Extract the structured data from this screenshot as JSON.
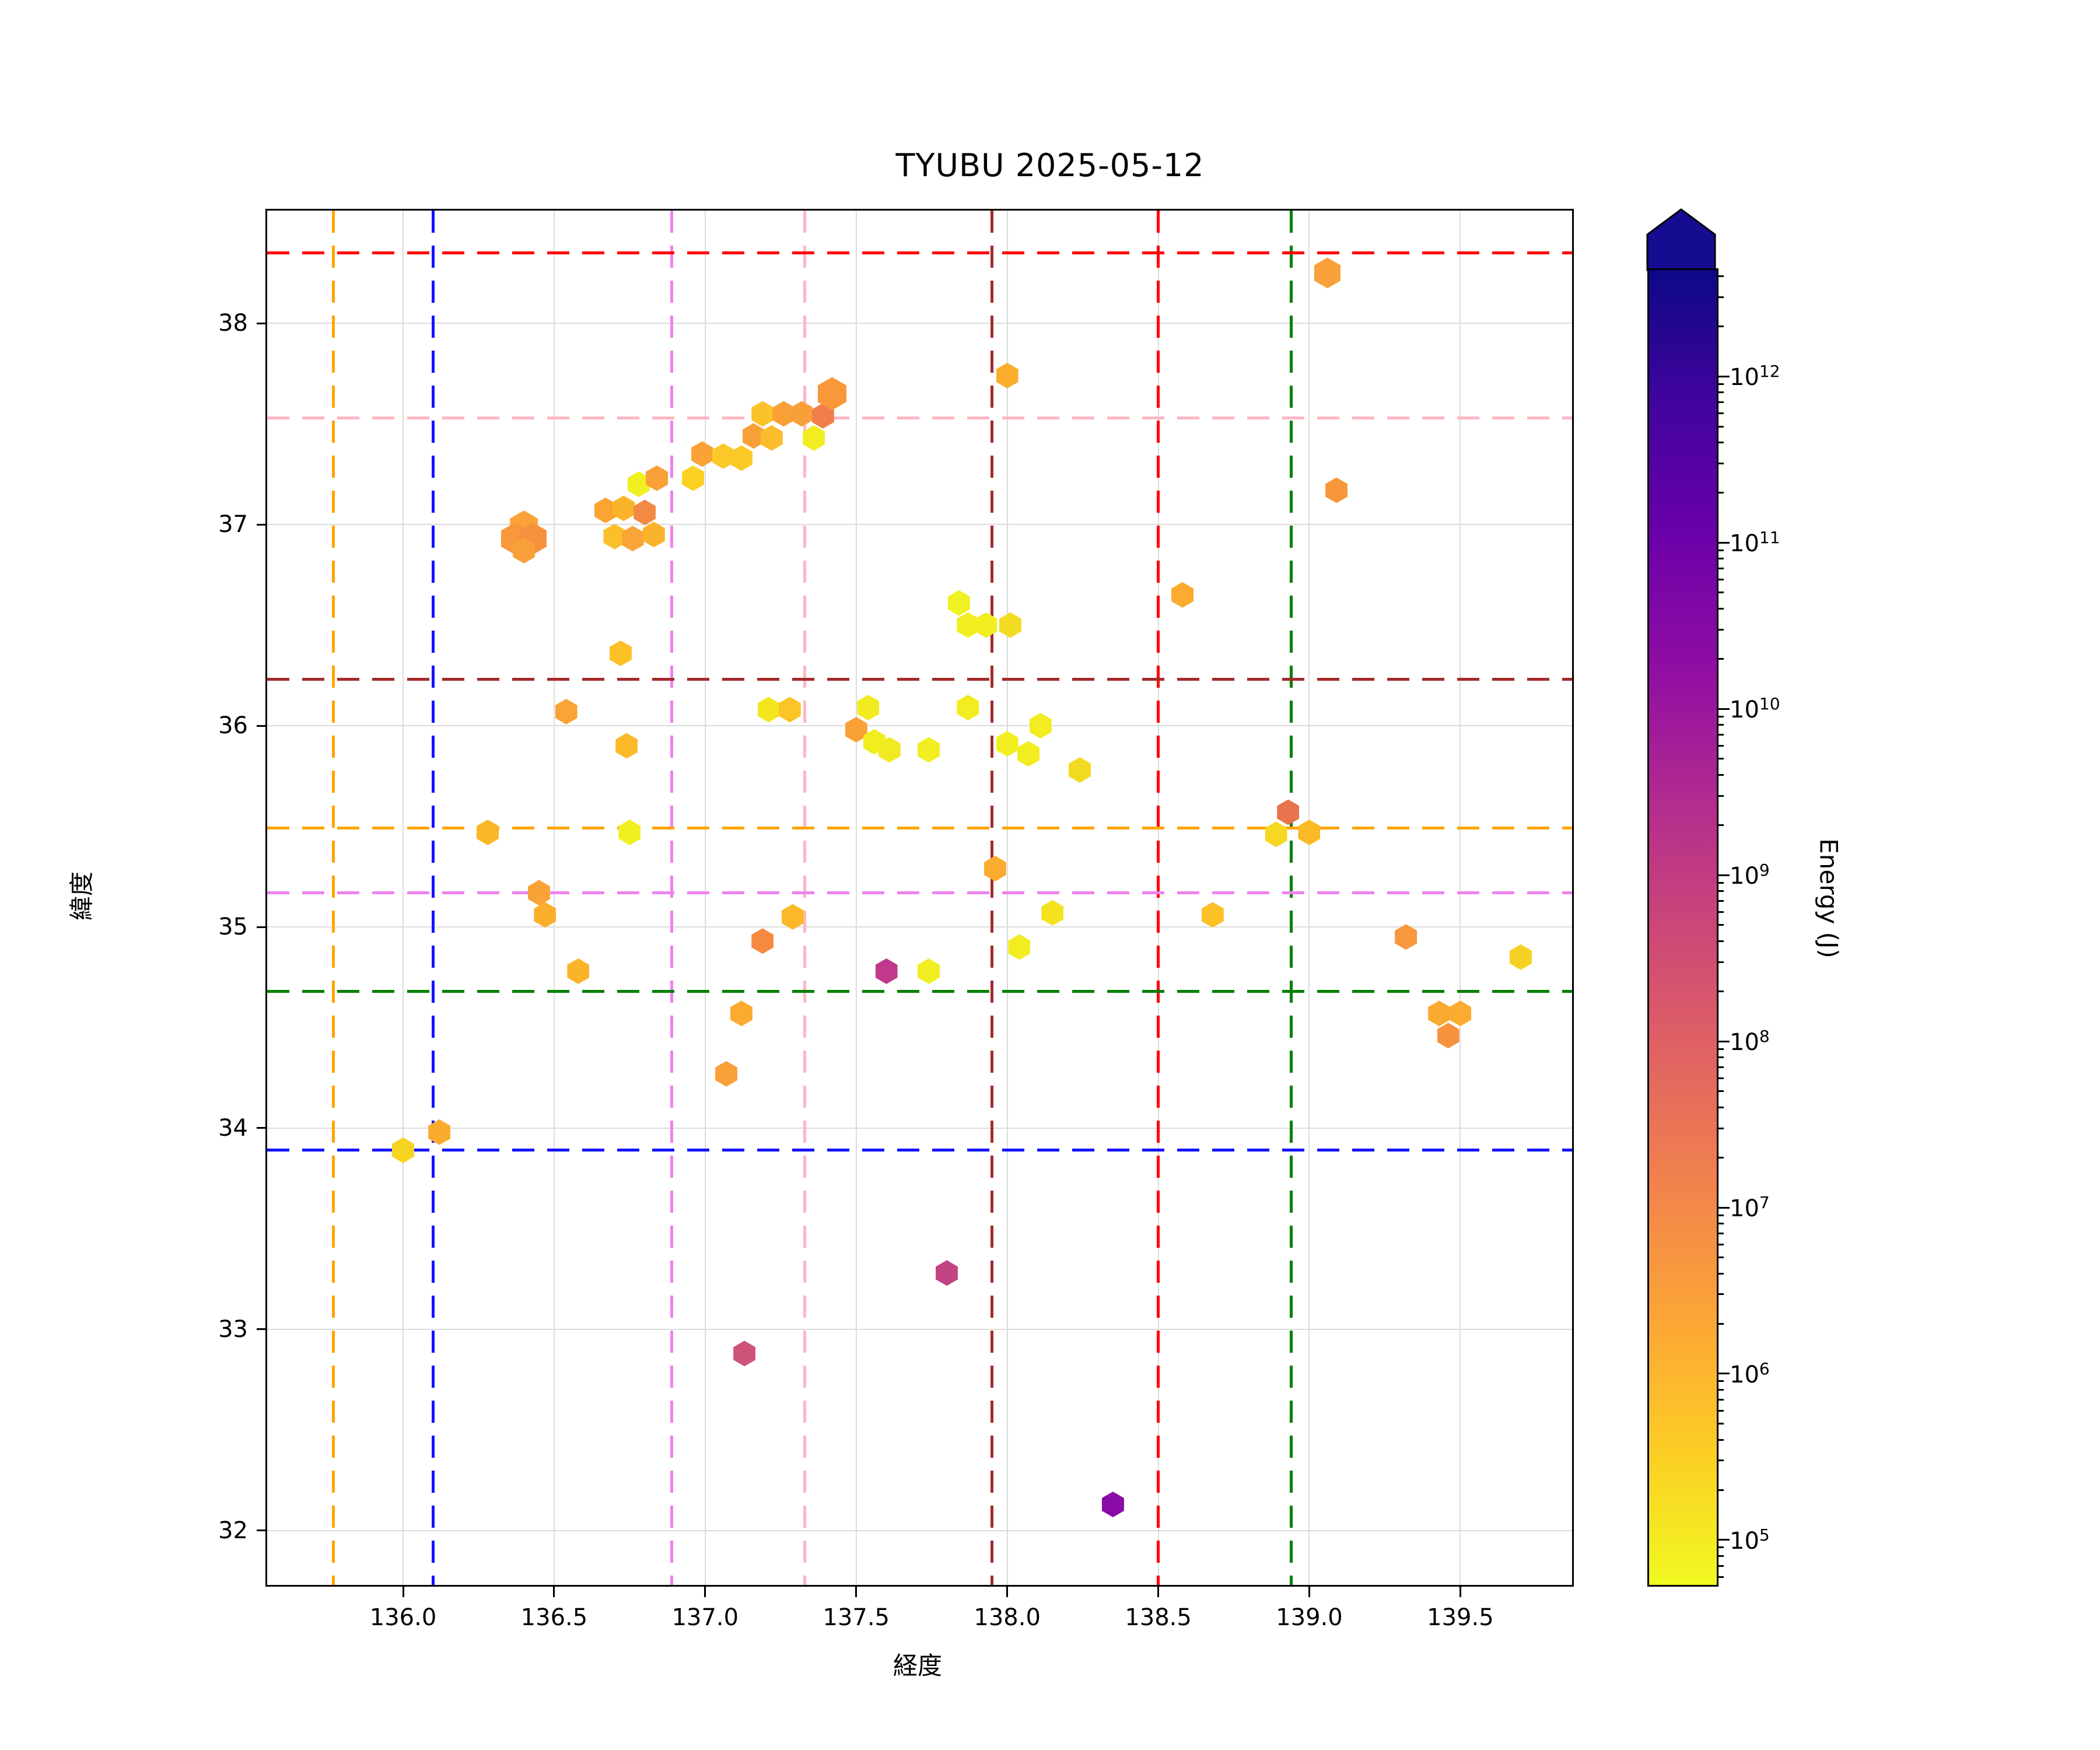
{
  "title": "TYUBU 2025-05-12",
  "axes": {
    "xlabel": "経度",
    "ylabel": "緯度",
    "xlim": [
      135.55,
      139.87
    ],
    "ylim": [
      31.73,
      38.56
    ],
    "xticks": [
      136.0,
      136.5,
      137.0,
      137.5,
      138.0,
      138.5,
      139.0,
      139.5
    ],
    "yticks": [
      32,
      33,
      34,
      35,
      36,
      37,
      38
    ],
    "grid_color": "#dcdcdc"
  },
  "reference_lines": {
    "vertical": [
      {
        "lon": 135.77,
        "color": "#ffa500"
      },
      {
        "lon": 136.1,
        "color": "#1414ff"
      },
      {
        "lon": 136.89,
        "color": "#ee82ee"
      },
      {
        "lon": 137.33,
        "color": "#ffb6c1"
      },
      {
        "lon": 137.95,
        "color": "#a52a2a"
      },
      {
        "lon": 138.5,
        "color": "#ff0000"
      },
      {
        "lon": 138.94,
        "color": "#008000"
      }
    ],
    "horizontal": [
      {
        "lat": 38.35,
        "color": "#ff0000"
      },
      {
        "lat": 37.53,
        "color": "#ffb6c1"
      },
      {
        "lat": 36.23,
        "color": "#a52a2a"
      },
      {
        "lat": 35.49,
        "color": "#ffa500"
      },
      {
        "lat": 35.17,
        "color": "#ee82ee"
      },
      {
        "lat": 34.68,
        "color": "#008000"
      },
      {
        "lat": 33.89,
        "color": "#1414ff"
      }
    ]
  },
  "chart_data": {
    "type": "scatter",
    "marker": "hexagon",
    "title": "TYUBU 2025-05-12",
    "xlabel": "経度",
    "ylabel": "緯度",
    "xlim": [
      135.55,
      139.87
    ],
    "ylim": [
      31.73,
      38.56
    ],
    "color_encodes": "Energy (J), log scale, plasma colormap reversed (yellow=low, dark blue=high)",
    "points": [
      {
        "lon": 136.4,
        "lat": 36.99,
        "color": "#fba238",
        "energy_j": 2000000.0,
        "size": 1.25
      },
      {
        "lon": 136.37,
        "lat": 36.93,
        "color": "#f9973c",
        "energy_j": 4000000.0,
        "size": 1.25
      },
      {
        "lon": 136.43,
        "lat": 36.93,
        "color": "#f8913e",
        "energy_j": 5000000.0,
        "size": 1.25
      },
      {
        "lon": 136.4,
        "lat": 36.87,
        "color": "#f9a138",
        "energy_j": 2500000.0,
        "size": 1
      },
      {
        "lon": 136.67,
        "lat": 37.07,
        "color": "#f9a433",
        "energy_j": 2000000.0,
        "size": 1
      },
      {
        "lon": 136.73,
        "lat": 37.08,
        "color": "#fbb42a",
        "energy_j": 1000000.0,
        "size": 1
      },
      {
        "lon": 136.78,
        "lat": 37.2,
        "color": "#f0ef21",
        "energy_j": 100000.0,
        "size": 1
      },
      {
        "lon": 136.84,
        "lat": 37.23,
        "color": "#f9a038",
        "energy_j": 2500000.0,
        "size": 1
      },
      {
        "lon": 136.8,
        "lat": 37.06,
        "color": "#f28a44",
        "energy_j": 8000000.0,
        "size": 1
      },
      {
        "lon": 136.7,
        "lat": 36.94,
        "color": "#fbbf2c",
        "energy_j": 700000.0,
        "size": 1
      },
      {
        "lon": 136.76,
        "lat": 36.93,
        "color": "#f9a53a",
        "energy_j": 2000000.0,
        "size": 1
      },
      {
        "lon": 136.83,
        "lat": 36.95,
        "color": "#fbb32b",
        "energy_j": 1000000.0,
        "size": 1
      },
      {
        "lon": 136.96,
        "lat": 37.23,
        "color": "#fbd224",
        "energy_j": 300000.0,
        "size": 1
      },
      {
        "lon": 136.99,
        "lat": 37.35,
        "color": "#f9a337",
        "energy_j": 2000000.0,
        "size": 1
      },
      {
        "lon": 137.06,
        "lat": 37.34,
        "color": "#fbc928",
        "energy_j": 500000.0,
        "size": 1
      },
      {
        "lon": 137.12,
        "lat": 37.33,
        "color": "#fbc927",
        "energy_j": 500000.0,
        "size": 1
      },
      {
        "lon": 137.16,
        "lat": 37.44,
        "color": "#f9a139",
        "energy_j": 2500000.0,
        "size": 1
      },
      {
        "lon": 137.22,
        "lat": 37.43,
        "color": "#fbbd2b",
        "energy_j": 800000.0,
        "size": 1
      },
      {
        "lon": 137.19,
        "lat": 37.55,
        "color": "#fbc22a",
        "energy_j": 600000.0,
        "size": 1
      },
      {
        "lon": 137.26,
        "lat": 37.55,
        "color": "#f9a038",
        "energy_j": 2500000.0,
        "size": 1
      },
      {
        "lon": 137.32,
        "lat": 37.55,
        "color": "#f99f39",
        "energy_j": 2500000.0,
        "size": 1
      },
      {
        "lon": 137.39,
        "lat": 37.54,
        "color": "#ef7e4a",
        "energy_j": 15000000.0,
        "size": 1
      },
      {
        "lon": 137.42,
        "lat": 37.65,
        "color": "#f8983b",
        "energy_j": 4000000.0,
        "size": 1.3
      },
      {
        "lon": 137.36,
        "lat": 37.43,
        "color": "#f2ed20",
        "energy_j": 120000.0,
        "size": 1
      },
      {
        "lon": 136.72,
        "lat": 36.36,
        "color": "#fbc127",
        "energy_j": 600000.0,
        "size": 1
      },
      {
        "lon": 136.54,
        "lat": 36.07,
        "color": "#f9a434",
        "energy_j": 2000000.0,
        "size": 1
      },
      {
        "lon": 136.74,
        "lat": 35.9,
        "color": "#fbb929",
        "energy_j": 800000.0,
        "size": 1
      },
      {
        "lon": 136.28,
        "lat": 35.47,
        "color": "#fbb628",
        "energy_j": 900000.0,
        "size": 1
      },
      {
        "lon": 136.75,
        "lat": 35.47,
        "color": "#f0f021",
        "energy_j": 100000.0,
        "size": 1
      },
      {
        "lon": 136.45,
        "lat": 35.17,
        "color": "#f9a237",
        "energy_j": 2200000.0,
        "size": 1
      },
      {
        "lon": 136.47,
        "lat": 35.06,
        "color": "#fbaf2d",
        "energy_j": 1300000.0,
        "size": 1
      },
      {
        "lon": 136.58,
        "lat": 34.78,
        "color": "#fbb42a",
        "energy_j": 1000000.0,
        "size": 1
      },
      {
        "lon": 137.21,
        "lat": 36.08,
        "color": "#f4e51f",
        "energy_j": 160000.0,
        "size": 1
      },
      {
        "lon": 137.28,
        "lat": 36.08,
        "color": "#fbc427",
        "energy_j": 600000.0,
        "size": 1
      },
      {
        "lon": 137.54,
        "lat": 36.09,
        "color": "#f2eb20",
        "energy_j": 130000.0,
        "size": 1
      },
      {
        "lon": 137.5,
        "lat": 35.98,
        "color": "#f9a137",
        "energy_j": 2500000.0,
        "size": 1
      },
      {
        "lon": 137.56,
        "lat": 35.92,
        "color": "#f1ee20",
        "energy_j": 110000.0,
        "size": 1
      },
      {
        "lon": 137.61,
        "lat": 35.88,
        "color": "#f2ea20",
        "energy_j": 130000.0,
        "size": 1
      },
      {
        "lon": 137.74,
        "lat": 35.88,
        "color": "#f1ef21",
        "energy_j": 100000.0,
        "size": 1
      },
      {
        "lon": 137.87,
        "lat": 36.09,
        "color": "#f2ec20",
        "energy_j": 120000.0,
        "size": 1
      },
      {
        "lon": 137.84,
        "lat": 36.61,
        "color": "#f0f121",
        "energy_j": 90000.0,
        "size": 1
      },
      {
        "lon": 137.87,
        "lat": 36.5,
        "color": "#f1ef20",
        "energy_j": 100000.0,
        "size": 1
      },
      {
        "lon": 137.93,
        "lat": 36.5,
        "color": "#f2ee20",
        "energy_j": 110000.0,
        "size": 1
      },
      {
        "lon": 138.01,
        "lat": 36.5,
        "color": "#f2dc22",
        "energy_j": 220000.0,
        "size": 1
      },
      {
        "lon": 138.11,
        "lat": 36.0,
        "color": "#f2ec20",
        "energy_j": 120000.0,
        "size": 1
      },
      {
        "lon": 138.0,
        "lat": 35.91,
        "color": "#f2ee20",
        "energy_j": 110000.0,
        "size": 1
      },
      {
        "lon": 138.07,
        "lat": 35.86,
        "color": "#f1ed20",
        "energy_j": 120000.0,
        "size": 1
      },
      {
        "lon": 138.24,
        "lat": 35.78,
        "color": "#f3da22",
        "energy_j": 240000.0,
        "size": 1
      },
      {
        "lon": 137.96,
        "lat": 35.29,
        "color": "#fbab30",
        "energy_j": 1500000.0,
        "size": 1
      },
      {
        "lon": 138.15,
        "lat": 35.07,
        "color": "#f4e21f",
        "energy_j": 180000.0,
        "size": 1
      },
      {
        "lon": 138.04,
        "lat": 34.9,
        "color": "#f2ec20",
        "energy_j": 120000.0,
        "size": 1
      },
      {
        "lon": 137.6,
        "lat": 34.78,
        "color": "#c0398b",
        "energy_j": 2000000000.0,
        "size": 1
      },
      {
        "lon": 137.74,
        "lat": 34.78,
        "color": "#f1ef21",
        "energy_j": 100000.0,
        "size": 1
      },
      {
        "lon": 137.29,
        "lat": 35.05,
        "color": "#fbb828",
        "energy_j": 900000.0,
        "size": 1
      },
      {
        "lon": 137.19,
        "lat": 34.93,
        "color": "#f5893f",
        "energy_j": 6000000.0,
        "size": 1
      },
      {
        "lon": 137.12,
        "lat": 34.57,
        "color": "#fbab30",
        "energy_j": 1400000.0,
        "size": 1
      },
      {
        "lon": 137.07,
        "lat": 34.27,
        "color": "#f9a038",
        "energy_j": 2500000.0,
        "size": 1
      },
      {
        "lon": 136.12,
        "lat": 33.98,
        "color": "#fbaa30",
        "energy_j": 1500000.0,
        "size": 1
      },
      {
        "lon": 136.0,
        "lat": 33.89,
        "color": "#f6d522",
        "energy_j": 280000.0,
        "size": 1
      },
      {
        "lon": 139.06,
        "lat": 38.25,
        "color": "#f9a13a",
        "energy_j": 2500000.0,
        "size": 1.2
      },
      {
        "lon": 138.0,
        "lat": 37.74,
        "color": "#fbad2e",
        "energy_j": 1400000.0,
        "size": 1
      },
      {
        "lon": 139.09,
        "lat": 37.17,
        "color": "#f8963c",
        "energy_j": 4000000.0,
        "size": 1
      },
      {
        "lon": 138.58,
        "lat": 36.65,
        "color": "#fbab30",
        "energy_j": 1500000.0,
        "size": 1
      },
      {
        "lon": 138.93,
        "lat": 35.57,
        "color": "#e8734e",
        "energy_j": 25000000.0,
        "size": 1
      },
      {
        "lon": 138.89,
        "lat": 35.46,
        "color": "#f6d722",
        "energy_j": 260000.0,
        "size": 1
      },
      {
        "lon": 139.0,
        "lat": 35.47,
        "color": "#fbb928",
        "energy_j": 800000.0,
        "size": 1
      },
      {
        "lon": 138.68,
        "lat": 35.06,
        "color": "#fbc127",
        "energy_j": 650000.0,
        "size": 1
      },
      {
        "lon": 139.32,
        "lat": 34.95,
        "color": "#f8973c",
        "energy_j": 4000000.0,
        "size": 1
      },
      {
        "lon": 139.7,
        "lat": 34.85,
        "color": "#f6d123",
        "energy_j": 300000.0,
        "size": 1
      },
      {
        "lon": 139.43,
        "lat": 34.57,
        "color": "#fbaa31",
        "energy_j": 1500000.0,
        "size": 1
      },
      {
        "lon": 139.5,
        "lat": 34.57,
        "color": "#fbab2f",
        "energy_j": 1500000.0,
        "size": 1
      },
      {
        "lon": 139.46,
        "lat": 34.46,
        "color": "#f7923d",
        "energy_j": 4500000.0,
        "size": 1
      },
      {
        "lon": 137.8,
        "lat": 33.28,
        "color": "#c34383",
        "energy_j": 1200000000.0,
        "size": 1
      },
      {
        "lon": 137.13,
        "lat": 32.88,
        "color": "#cd5378",
        "energy_j": 400000000.0,
        "size": 1
      },
      {
        "lon": 138.35,
        "lat": 32.13,
        "color": "#8a0ba5",
        "energy_j": 50000000000.0,
        "size": 1
      }
    ]
  },
  "colorbar": {
    "label": "Energy (J)",
    "scale": "log",
    "extend": "max",
    "arrow_color": "#150c92",
    "top_exponent": 12.65,
    "bottom_exponent": 4.74,
    "major_tick_exponents": [
      12,
      11,
      10,
      9,
      8,
      7,
      6,
      5
    ],
    "gradient_top_to_bottom": [
      "#0d0887",
      "#41049d",
      "#6a00a8",
      "#8f0da4",
      "#b12a90",
      "#cc4778",
      "#e16462",
      "#f2844b",
      "#fca636",
      "#fcce25",
      "#f0f921"
    ]
  }
}
